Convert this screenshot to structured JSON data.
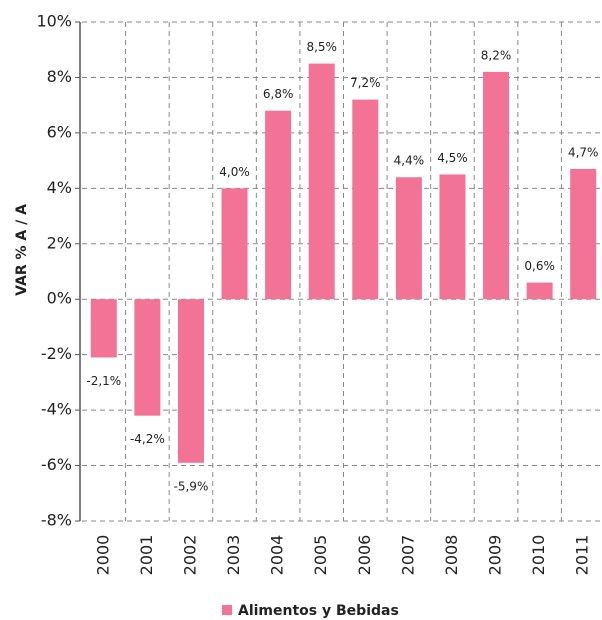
{
  "chart_data": {
    "type": "bar",
    "y_label": "VAR % A / A",
    "categories": [
      "2000",
      "2001",
      "2002",
      "2003",
      "2004",
      "2005",
      "2006",
      "2007",
      "2008",
      "2009",
      "2010",
      "2011"
    ],
    "series": [
      {
        "name": "Alimentos y Bebidas",
        "color": "#f27396",
        "values": [
          -2.1,
          -4.2,
          -5.9,
          4.0,
          6.8,
          8.5,
          7.2,
          4.4,
          4.5,
          8.2,
          0.6,
          4.7
        ],
        "value_labels": [
          "-2,1%",
          "-4,2%",
          "-5,9%",
          "4,0%",
          "6,8%",
          "8,5%",
          "7,2%",
          "4,4%",
          "4,5%",
          "8,2%",
          "0,6%",
          "4,7%"
        ]
      }
    ],
    "ylim": [
      -8,
      10
    ],
    "yticks": [
      {
        "value": -8,
        "label": "-8%"
      },
      {
        "value": -6,
        "label": "-6%"
      },
      {
        "value": -4,
        "label": "-4%"
      },
      {
        "value": -2,
        "label": "-2%"
      },
      {
        "value": 0,
        "label": "0%"
      },
      {
        "value": 2,
        "label": "2%"
      },
      {
        "value": 4,
        "label": "4%"
      },
      {
        "value": 6,
        "label": "6%"
      },
      {
        "value": 8,
        "label": "8%"
      },
      {
        "value": 10,
        "label": "10%"
      }
    ],
    "grid": true,
    "legend": "bottom"
  }
}
